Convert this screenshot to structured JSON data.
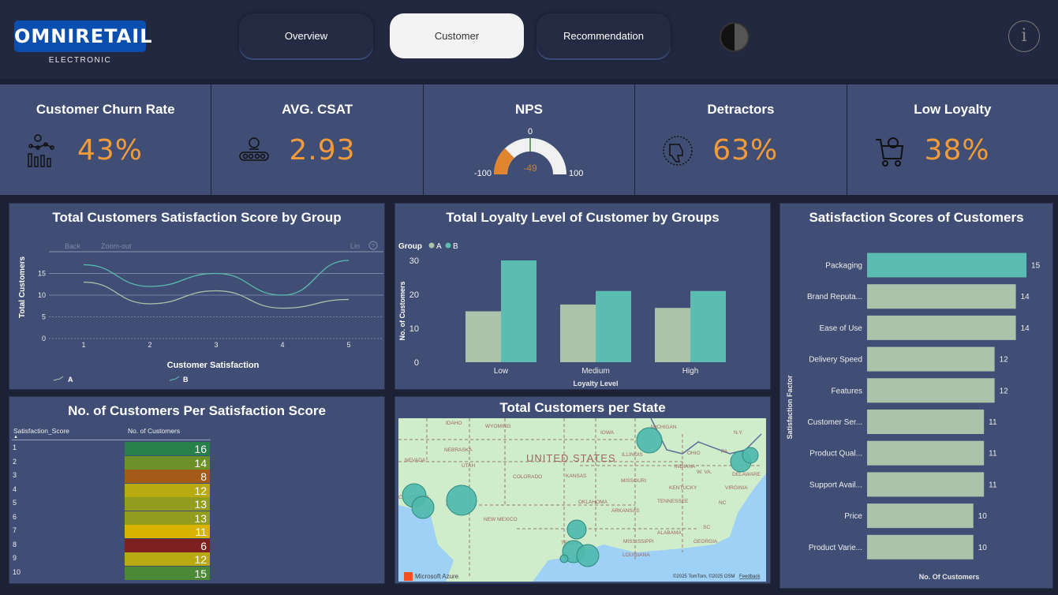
{
  "header": {
    "logo": "OMNIRETAIL",
    "logo_sub": "ELECTRONIC",
    "tabs": [
      {
        "label": "Overview"
      },
      {
        "label": "Customer",
        "active": true
      },
      {
        "label": "Recommendation"
      }
    ],
    "info_label": "i"
  },
  "kpis": [
    {
      "title": "Customer Churn Rate",
      "value": "43%",
      "icon": "churn-analytics-icon"
    },
    {
      "title": "AVG. CSAT",
      "value": "2.93",
      "icon": "rating-conveyor-icon"
    },
    {
      "title": "NPS",
      "gauge": {
        "min": "-100",
        "max": "100",
        "center": "0",
        "value": "-49",
        "value_num": -49
      }
    },
    {
      "title": "Detractors",
      "value": "63%",
      "icon": "thumbs-down-icon"
    },
    {
      "title": "Low Loyalty",
      "value": "38%",
      "icon": "shopping-cart-icon"
    }
  ],
  "colors": {
    "accent_value": "#f29b38",
    "series_a": "#aac4ab",
    "series_b": "#5bbcb1",
    "panel": "#404e75"
  },
  "chart_data": [
    {
      "type": "line",
      "title": "Total Customers Satisfaction Score by Group",
      "xlabel": "Customer Satisfaction",
      "ylabel": "Total Customers",
      "x": [
        1,
        2,
        3,
        4,
        5
      ],
      "yticks": [
        0,
        5,
        10,
        15
      ],
      "ylim": [
        0,
        19
      ],
      "toolbar": {
        "back": "Back",
        "zoom_out": "Zoom-out",
        "scale": "Lin",
        "help": "?"
      },
      "series": [
        {
          "name": "A",
          "values": [
            13,
            8,
            11,
            7,
            9
          ]
        },
        {
          "name": "B",
          "values": [
            17,
            12,
            15,
            10,
            18
          ]
        }
      ],
      "legend": "bottom-left"
    },
    {
      "type": "bar",
      "title": "Total Loyalty Level of Customer by Groups",
      "xlabel": "Loyalty Level",
      "ylabel": "No. of Customers",
      "legend_title": "Group",
      "categories": [
        "Low",
        "Medium",
        "High"
      ],
      "yticks": [
        0,
        10,
        20,
        30
      ],
      "ylim": [
        0,
        30
      ],
      "series": [
        {
          "name": "A",
          "values": [
            15,
            17,
            16
          ]
        },
        {
          "name": "B",
          "values": [
            30,
            21,
            21
          ]
        }
      ],
      "legend": "top-left"
    },
    {
      "type": "bar",
      "orientation": "horizontal",
      "title": "Satisfaction Scores of Customers",
      "xlabel": "No. Of Customers",
      "ylabel": "Satisfaction Factor",
      "categories": [
        "Packaging",
        "Brand Reputa...",
        "Ease of Use",
        "Delivery Speed",
        "Features",
        "Customer Ser...",
        "Product Qual...",
        "Support Avail...",
        "Price",
        "Product Varie..."
      ],
      "values": [
        15,
        14,
        14,
        12,
        12,
        11,
        11,
        11,
        10,
        10
      ],
      "highlight": "Packaging"
    },
    {
      "type": "table",
      "title": "No. of Customers Per Satisfaction Score",
      "columns": [
        "Satisfaction_Score",
        "No. of Customers"
      ],
      "rows": [
        [
          "1",
          "16",
          "#27804a"
        ],
        [
          "2",
          "14",
          "#6c9129"
        ],
        [
          "3",
          "8",
          "#a55b18"
        ],
        [
          "4",
          "12",
          "#b8aa10"
        ],
        [
          "5",
          "13",
          "#939d1d"
        ],
        [
          "6",
          "13",
          "#939d1d"
        ],
        [
          "7",
          "11",
          "#d9b300"
        ],
        [
          "8",
          "6",
          "#7e2020"
        ],
        [
          "9",
          "12",
          "#b8aa10"
        ],
        [
          "10",
          "15",
          "#4a8a36"
        ]
      ]
    }
  ],
  "map": {
    "title": "Total Customers per State",
    "labels": [
      "IDAHO",
      "WYOMING",
      "NEBRASKA",
      "IOWA",
      "MICHIGAN",
      "NEVADA",
      "UTAH",
      "UNITED STATES",
      "ILLINOIS",
      "OHIO",
      "PA",
      "N.Y.",
      "COLORADO",
      "KANSAS",
      "INDIANA",
      "W. VA.",
      "MISSOURI",
      "DELAWARE",
      "KENTUCKY",
      "VIRGINIA",
      "CALIFORNIA",
      "OKLAHOMA",
      "TENNESSEE",
      "NC",
      "ARKANSAS",
      "NEW MEXICO",
      "SC",
      "TEXAS",
      "ALABAMA",
      "MISSISSIPPI",
      "GEORGIA",
      "LOUISIANA"
    ],
    "brand": "Microsoft Azure",
    "copyright": "©2025 TomTom, ©2025 OSM",
    "feedback": "Feedback"
  }
}
